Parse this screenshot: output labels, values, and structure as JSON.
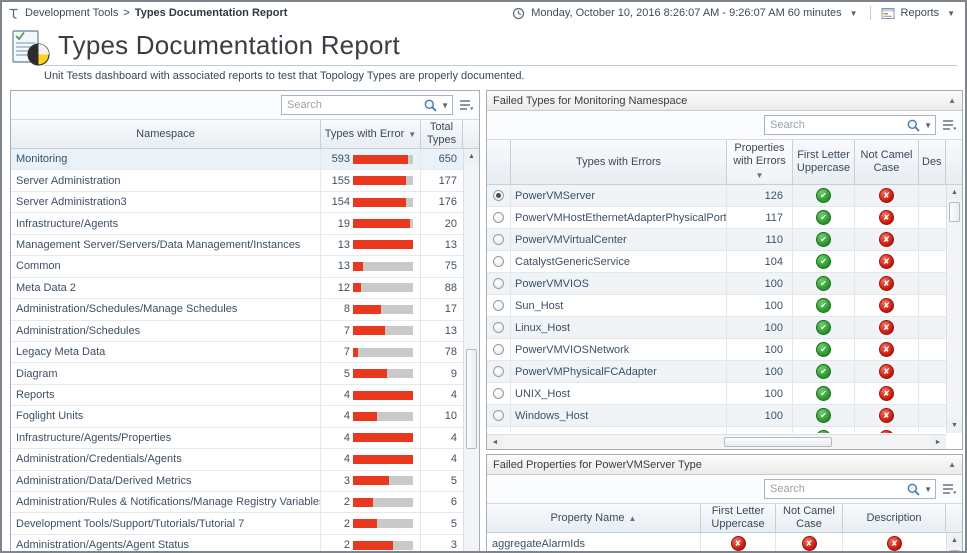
{
  "breadcrumb": {
    "section": "Development Tools",
    "separator": ">",
    "page": "Types Documentation Report"
  },
  "topbar": {
    "time_range": "Monday, October 10, 2016 8:26:07 AM - 9:26:07 AM 60 minutes",
    "reports_label": "Reports"
  },
  "page": {
    "title": "Types Documentation Report",
    "subtitle": "Unit Tests dashboard with associated reports to test that Topology Types are properly documented."
  },
  "namespace_panel": {
    "search_placeholder": "Search",
    "columns": {
      "namespace": "Namespace",
      "errors": "Types with Error",
      "total": "Total Types"
    },
    "sort": {
      "column": "Types with Error",
      "direction": "desc"
    },
    "rows": [
      {
        "namespace": "Monitoring",
        "errors": 593,
        "total": 650,
        "selected": true
      },
      {
        "namespace": "Server Administration",
        "errors": 155,
        "total": 177
      },
      {
        "namespace": "Server Administration3",
        "errors": 154,
        "total": 176
      },
      {
        "namespace": "Infrastructure/Agents",
        "errors": 19,
        "total": 20
      },
      {
        "namespace": "Management Server/Servers/Data Management/Instances",
        "errors": 13,
        "total": 13
      },
      {
        "namespace": "Common",
        "errors": 13,
        "total": 75
      },
      {
        "namespace": "Meta Data 2",
        "errors": 12,
        "total": 88
      },
      {
        "namespace": "Administration/Schedules/Manage Schedules",
        "errors": 8,
        "total": 17
      },
      {
        "namespace": "Administration/Schedules",
        "errors": 7,
        "total": 13
      },
      {
        "namespace": "Legacy Meta Data",
        "errors": 7,
        "total": 78
      },
      {
        "namespace": "Diagram",
        "errors": 5,
        "total": 9
      },
      {
        "namespace": "Reports",
        "errors": 4,
        "total": 4
      },
      {
        "namespace": "Foglight Units",
        "errors": 4,
        "total": 10
      },
      {
        "namespace": "Infrastructure/Agents/Properties",
        "errors": 4,
        "total": 4
      },
      {
        "namespace": "Administration/Credentials/Agents",
        "errors": 4,
        "total": 4
      },
      {
        "namespace": "Administration/Data/Derived Metrics",
        "errors": 3,
        "total": 5
      },
      {
        "namespace": "Administration/Rules & Notifications/Manage Registry Variables",
        "errors": 2,
        "total": 6
      },
      {
        "namespace": "Development Tools/Support/Tutorials/Tutorial 7",
        "errors": 2,
        "total": 5
      },
      {
        "namespace": "Administration/Agents/Agent Status",
        "errors": 2,
        "total": 3
      }
    ]
  },
  "failed_types_panel": {
    "title": "Failed Types for Monitoring Namespace",
    "search_placeholder": "Search",
    "columns": {
      "type": "Types with Errors",
      "props": "Properties with Errors",
      "first_letter": "First Letter Uppercase",
      "camel": "Not Camel Case",
      "description": "Des"
    },
    "sort": {
      "column": "Properties with Errors",
      "direction": "desc"
    },
    "status_glyphs": {
      "pass": "✔",
      "fail": "✘"
    },
    "rows": [
      {
        "type": "PowerVMServer",
        "props": 126,
        "first_letter": "pass",
        "camel": "fail",
        "selected": true
      },
      {
        "type": "PowerVMHostEthernetAdapterPhysicalPort",
        "props": 117,
        "first_letter": "pass",
        "camel": "fail"
      },
      {
        "type": "PowerVMVirtualCenter",
        "props": 110,
        "first_letter": "pass",
        "camel": "fail"
      },
      {
        "type": "CatalystGenericService",
        "props": 104,
        "first_letter": "pass",
        "camel": "fail"
      },
      {
        "type": "PowerVMVIOS",
        "props": 100,
        "first_letter": "pass",
        "camel": "fail"
      },
      {
        "type": "Sun_Host",
        "props": 100,
        "first_letter": "pass",
        "camel": "fail"
      },
      {
        "type": "Linux_Host",
        "props": 100,
        "first_letter": "pass",
        "camel": "fail"
      },
      {
        "type": "PowerVMVIOSNetwork",
        "props": 100,
        "first_letter": "pass",
        "camel": "fail"
      },
      {
        "type": "PowerVMPhysicalFCAdapter",
        "props": 100,
        "first_letter": "pass",
        "camel": "fail"
      },
      {
        "type": "UNIX_Host",
        "props": 100,
        "first_letter": "pass",
        "camel": "fail"
      },
      {
        "type": "Windows_Host",
        "props": 100,
        "first_letter": "pass",
        "camel": "fail"
      },
      {
        "type": "",
        "props": null,
        "first_letter": "pass",
        "camel": "fail",
        "partial": true
      }
    ]
  },
  "failed_properties_panel": {
    "title": "Failed Properties for PowerVMServer Type",
    "search_placeholder": "Search",
    "columns": {
      "property": "Property Name",
      "first_letter": "First Letter Uppercase",
      "camel": "Not Camel Case",
      "description": "Description"
    },
    "sort": {
      "column": "Property Name",
      "direction": "asc"
    },
    "rows": [
      {
        "property": "aggregateAlarmIds",
        "first_letter": "fail",
        "camel": "fail",
        "description": "fail"
      }
    ]
  },
  "colors": {
    "error_bar_red": "#e8391f",
    "bar_track_gray": "#c9c9c9",
    "pass_green": "#2e9b30",
    "fail_red": "#cf1d10",
    "selected_row": "#e9f1f9"
  }
}
